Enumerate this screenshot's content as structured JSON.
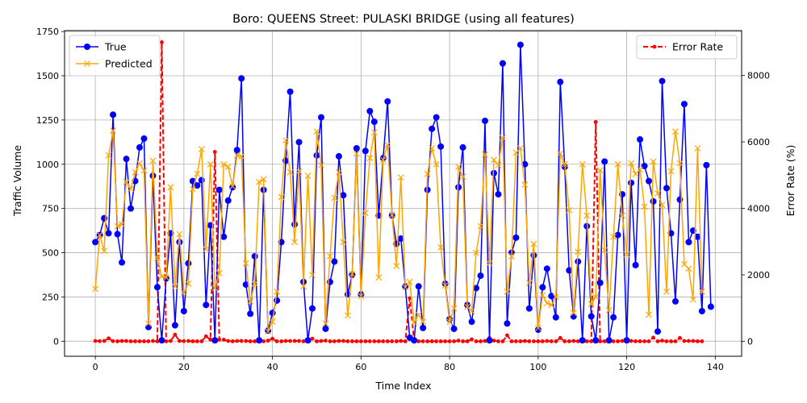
{
  "chart_data": {
    "type": "line",
    "title": "Boro: QUEENS Street: PULASKI BRIDGE (using all features)",
    "xlabel": "Time Index",
    "ylabel": "Traffic Volume",
    "y2label": "Error Rate (%)",
    "xlim": [
      -6.95,
      145.95
    ],
    "ylim": [
      -85,
      1755
    ],
    "y2lim": [
      -450,
      9350
    ],
    "xticks": [
      0,
      20,
      40,
      60,
      80,
      100,
      120,
      140
    ],
    "yticks": [
      0,
      250,
      500,
      750,
      1000,
      1250,
      1500,
      1750
    ],
    "y2ticks": [
      0,
      2000,
      4000,
      6000,
      8000
    ],
    "grid": true,
    "legend_left_placement": "upper-left",
    "legend_right_placement": "upper-right",
    "series": [
      {
        "name": "True",
        "axis": "left",
        "color": "#0000ff",
        "marker": "circle",
        "values": [
          560,
          600,
          695,
          610,
          1280,
          605,
          445,
          1030,
          750,
          905,
          1095,
          1145,
          80,
          935,
          305,
          5,
          355,
          610,
          90,
          560,
          170,
          440,
          905,
          880,
          910,
          205,
          655,
          5,
          855,
          590,
          795,
          870,
          1080,
          1485,
          320,
          155,
          480,
          5,
          855,
          60,
          160,
          230,
          560,
          1020,
          1410,
          660,
          1125,
          335,
          5,
          185,
          1050,
          1265,
          70,
          335,
          450,
          1045,
          825,
          265,
          375,
          1090,
          265,
          1075,
          1300,
          1240,
          710,
          1035,
          1355,
          710,
          550,
          580,
          310,
          20,
          5,
          310,
          75,
          855,
          1200,
          1265,
          1100,
          325,
          125,
          70,
          870,
          1095,
          205,
          110,
          300,
          370,
          1245,
          5,
          950,
          830,
          1570,
          100,
          500,
          585,
          1675,
          1000,
          185,
          485,
          65,
          305,
          410,
          255,
          135,
          1465,
          985,
          400,
          140,
          450,
          5,
          650,
          140,
          5,
          330,
          1015,
          5,
          135,
          600,
          830,
          5,
          895,
          430,
          1140,
          990,
          905,
          790,
          55,
          1470,
          865,
          610,
          225,
          800,
          1340,
          560,
          625,
          590,
          170,
          995,
          195
        ]
      },
      {
        "name": "Predicted",
        "axis": "left",
        "color": "#ffa500",
        "marker": "x",
        "values": [
          295,
          600,
          510,
          1050,
          1190,
          650,
          660,
          900,
          860,
          955,
          1005,
          965,
          100,
          1020,
          470,
          365,
          360,
          870,
          310,
          605,
          275,
          325,
          860,
          945,
          1085,
          520,
          1000,
          300,
          385,
          1000,
          985,
          875,
          1050,
          1045,
          440,
          225,
          325,
          900,
          915,
          55,
          110,
          280,
          815,
          1135,
          955,
          560,
          960,
          310,
          935,
          375,
          1185,
          995,
          100,
          480,
          810,
          955,
          560,
          145,
          380,
          1060,
          255,
          725,
          1035,
          1180,
          360,
          1025,
          1110,
          715,
          425,
          925,
          305,
          335,
          105,
          150,
          110,
          945,
          1090,
          1000,
          530,
          315,
          110,
          185,
          985,
          930,
          195,
          170,
          500,
          650,
          1055,
          440,
          1025,
          995,
          1150,
          280,
          480,
          1065,
          1090,
          885,
          330,
          550,
          75,
          260,
          215,
          205,
          250,
          1060,
          1000,
          740,
          160,
          505,
          1000,
          710,
          210,
          250,
          965,
          515,
          175,
          590,
          1000,
          710,
          490,
          1005,
          945,
          970,
          760,
          150,
          1015,
          835,
          770,
          280,
          960,
          1185,
          1005,
          435,
          410,
          235,
          1090,
          280
        ]
      },
      {
        "name": "Error Rate",
        "axis": "right",
        "color": "#ff0000",
        "marker": "point",
        "linestyle": "dashed",
        "values": [
          10,
          5,
          10,
          90,
          5,
          0,
          10,
          10,
          0,
          0,
          0,
          0,
          0,
          10,
          0,
          9000,
          0,
          10,
          200,
          10,
          5,
          10,
          0,
          0,
          0,
          150,
          50,
          5700,
          50,
          50,
          10,
          0,
          10,
          10,
          10,
          0,
          0,
          0,
          0,
          20,
          80,
          0,
          0,
          10,
          10,
          10,
          10,
          0,
          0,
          80,
          0,
          10,
          20,
          0,
          0,
          10,
          10,
          0,
          0,
          0,
          0,
          0,
          0,
          0,
          0,
          0,
          0,
          0,
          0,
          10,
          0,
          1300,
          0,
          0,
          0,
          0,
          0,
          0,
          0,
          0,
          0,
          0,
          20,
          0,
          0,
          60,
          0,
          0,
          10,
          100,
          20,
          0,
          0,
          180,
          0,
          0,
          0,
          10,
          0,
          0,
          0,
          0,
          10,
          0,
          0,
          100,
          0,
          0,
          10,
          0,
          0,
          0,
          0,
          6600,
          0,
          0,
          10,
          0,
          0,
          10,
          0,
          10,
          0,
          0,
          0,
          0,
          110,
          0,
          20,
          0,
          0,
          0,
          100,
          10,
          10,
          10,
          0,
          0
        ]
      }
    ]
  }
}
